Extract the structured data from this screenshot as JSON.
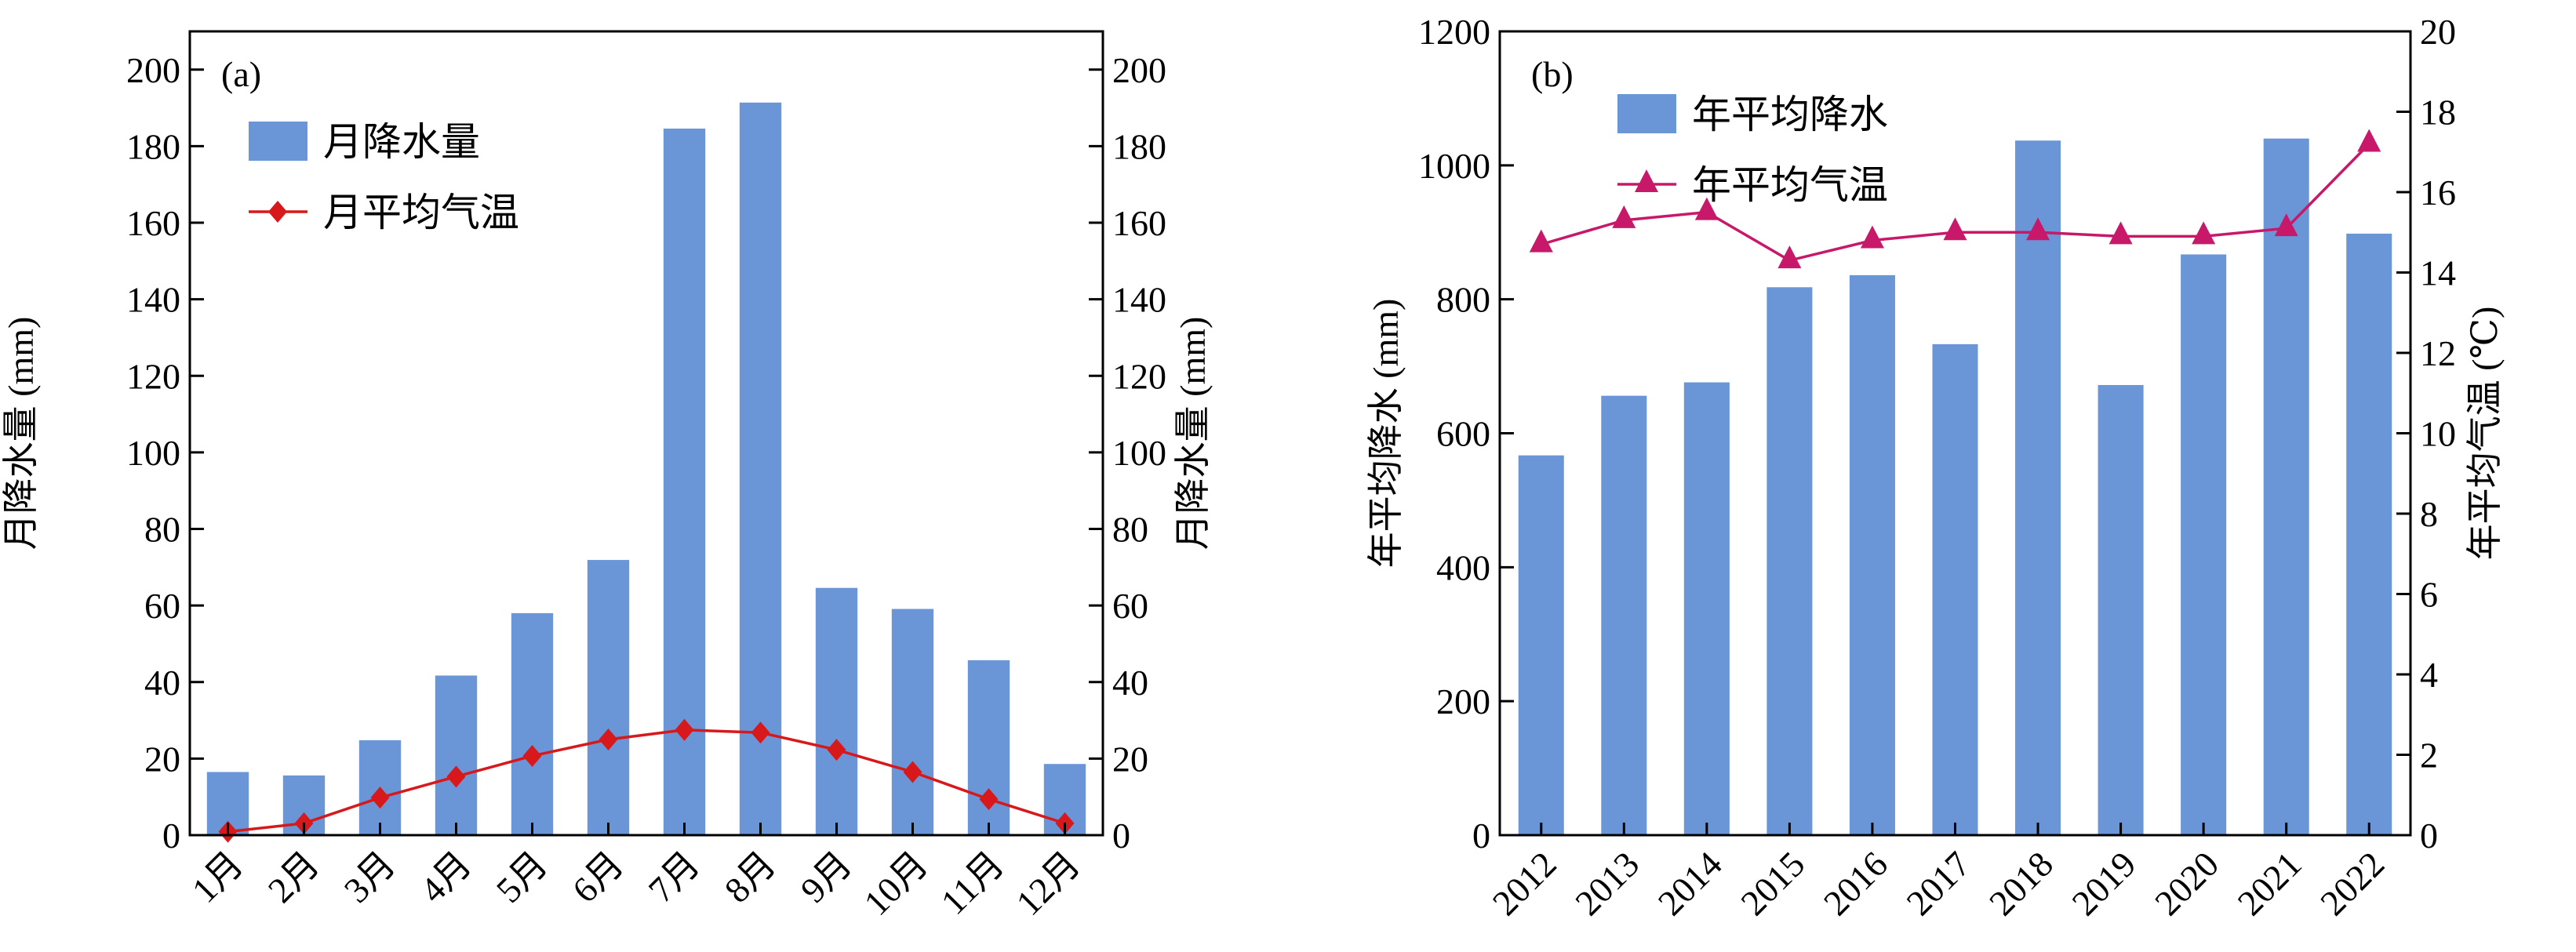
{
  "chart_data": [
    {
      "type": "bar",
      "panel_label": "(a)",
      "categories": [
        "1月",
        "2月",
        "3月",
        "4月",
        "5月",
        "6月",
        "7月",
        "8月",
        "9月",
        "10月",
        "11月",
        "12月"
      ],
      "series": [
        {
          "name": "月降水量",
          "type": "bar",
          "axis": "left",
          "color": "#6A96D8",
          "values": [
            16.5,
            15.6,
            24.8,
            41.7,
            58,
            71.9,
            184.6,
            191.4,
            64.6,
            59.1,
            45.7,
            18.6
          ]
        },
        {
          "name": "月平均气温",
          "type": "line",
          "marker": "diamond",
          "axis": "left",
          "color": "#D7191C",
          "values": [
            0.9,
            3.1,
            9.8,
            15.3,
            20.7,
            25,
            27.5,
            26.8,
            22.3,
            16.5,
            9.4,
            3.1
          ]
        }
      ],
      "ylabel": "月降水量 (mm)",
      "ylabel_right": "月降水量 (mm)",
      "ylim": [
        0,
        210
      ],
      "yticks": [
        0,
        20,
        40,
        60,
        80,
        100,
        120,
        140,
        160,
        180,
        200
      ],
      "ylim_right": [
        0,
        210
      ],
      "yticks_right": [
        0,
        20,
        40,
        60,
        80,
        100,
        120,
        140,
        160,
        180,
        200
      ],
      "legend_position": "top-left",
      "grid": false
    },
    {
      "type": "bar",
      "panel_label": "(b)",
      "categories": [
        "2012",
        "2013",
        "2014",
        "2015",
        "2016",
        "2017",
        "2018",
        "2019",
        "2020",
        "2021",
        "2022"
      ],
      "series": [
        {
          "name": "年平均降水",
          "type": "bar",
          "axis": "left",
          "color": "#6A96D8",
          "values": [
            567,
            656,
            676,
            818,
            836,
            733,
            1037,
            672,
            867,
            1040,
            898
          ]
        },
        {
          "name": "年平均气温",
          "type": "line",
          "marker": "triangle",
          "axis": "right",
          "color": "#C8186A",
          "values": [
            14.7,
            15.3,
            15.5,
            14.3,
            14.8,
            15.0,
            15.0,
            14.9,
            14.9,
            15.1,
            17.2
          ]
        }
      ],
      "ylabel": "年平均降水 (mm)",
      "ylabel_right": "年平均气温 (℃)",
      "ylim": [
        0,
        1200
      ],
      "yticks": [
        0,
        200,
        400,
        600,
        800,
        1000,
        1200
      ],
      "ylim_right": [
        0,
        20
      ],
      "yticks_right": [
        0,
        2,
        4,
        6,
        8,
        10,
        12,
        14,
        16,
        18,
        20
      ],
      "legend_position": "top-left",
      "grid": false
    }
  ]
}
